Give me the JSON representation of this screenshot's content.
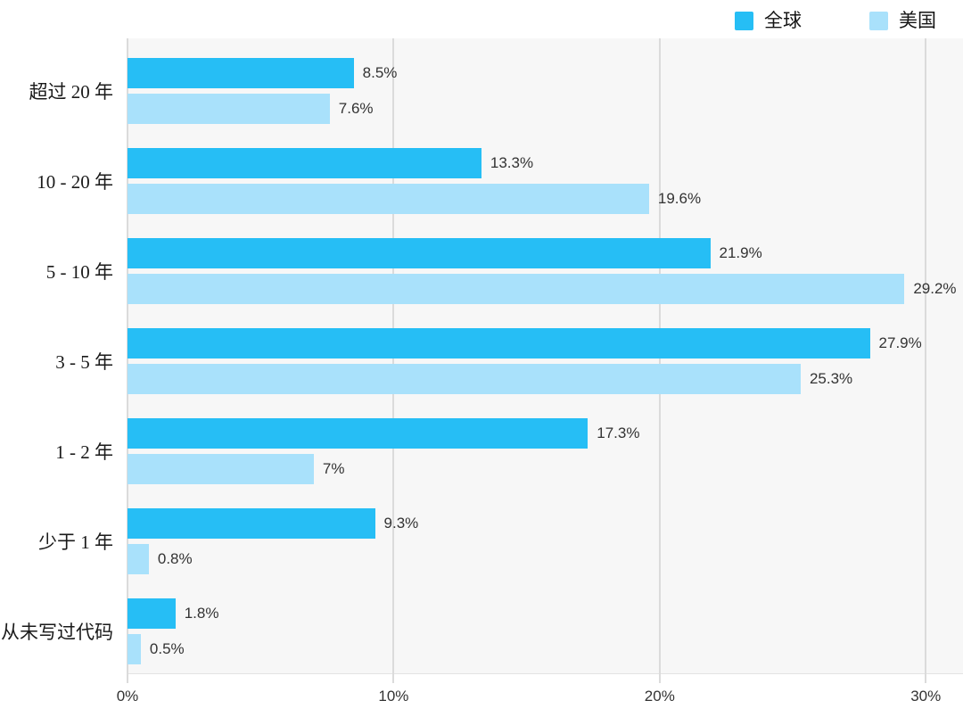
{
  "chart_data": {
    "type": "bar",
    "orientation": "horizontal",
    "title": "",
    "xlabel": "",
    "ylabel": "",
    "categories": [
      "超过 20 年",
      "10 - 20 年",
      "5 - 10 年",
      "3 - 5 年",
      "1 - 2 年",
      "少于 1 年",
      "从未写过代码"
    ],
    "series": [
      {
        "name": "全球",
        "color": "#26BEF5",
        "values": [
          8.5,
          13.3,
          21.9,
          27.9,
          17.3,
          9.3,
          1.8
        ],
        "labels": [
          "8.5%",
          "13.3%",
          "21.9%",
          "27.9%",
          "17.3%",
          "9.3%",
          "1.8%"
        ]
      },
      {
        "name": "美国",
        "color": "#A9E1FB",
        "values": [
          7.6,
          19.6,
          29.2,
          25.3,
          7,
          0.8,
          0.5
        ],
        "labels": [
          "7.6%",
          "19.6%",
          "29.2%",
          "25.3%",
          "7%",
          "0.8%",
          "0.5%"
        ]
      }
    ],
    "x_ticks": [
      {
        "label": "0%",
        "value": 0
      },
      {
        "label": "10%",
        "value": 10
      },
      {
        "label": "20%",
        "value": 20
      },
      {
        "label": "30%",
        "value": 30
      }
    ],
    "xlim": [
      0,
      31.4
    ],
    "grid": "vertical",
    "legend_position": "top-right"
  },
  "colors": {
    "plot_background": "#F7F7F7",
    "gridline": "#DBDBDB",
    "value_label_text": "#333333",
    "category_label_text": "#1A1A1A"
  }
}
